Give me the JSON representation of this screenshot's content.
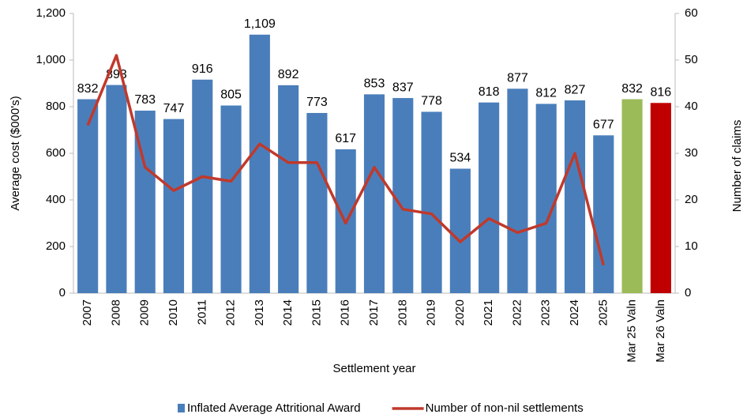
{
  "chart_data": {
    "type": "bar",
    "xlabel": "Settlement year",
    "ylabel": "Average cost ($000's)",
    "y2label": "Number of claims",
    "categories": [
      "2007",
      "2008",
      "2009",
      "2010",
      "2011",
      "2012",
      "2013",
      "2014",
      "2015",
      "2016",
      "2017",
      "2018",
      "2019",
      "2020",
      "2021",
      "2022",
      "2023",
      "2024",
      "2025",
      "Mar 25 Valn",
      "Mar 26 Valn"
    ],
    "series": [
      {
        "name": "Inflated Average Attritional Award",
        "type": "bar",
        "color": "#4a7ebb",
        "colors": [
          "#4a7ebb",
          "#4a7ebb",
          "#4a7ebb",
          "#4a7ebb",
          "#4a7ebb",
          "#4a7ebb",
          "#4a7ebb",
          "#4a7ebb",
          "#4a7ebb",
          "#4a7ebb",
          "#4a7ebb",
          "#4a7ebb",
          "#4a7ebb",
          "#4a7ebb",
          "#4a7ebb",
          "#4a7ebb",
          "#4a7ebb",
          "#4a7ebb",
          "#4a7ebb",
          "#9bbb59",
          "#c00000"
        ],
        "values": [
          832,
          893,
          783,
          747,
          916,
          805,
          1109,
          892,
          773,
          617,
          853,
          837,
          778,
          534,
          818,
          877,
          812,
          827,
          677,
          832,
          816
        ],
        "value_labels": [
          "832",
          "893",
          "783",
          "747",
          "916",
          "805",
          "1,109",
          "892",
          "773",
          "617",
          "853",
          "837",
          "778",
          "534",
          "818",
          "877",
          "812",
          "827",
          "677",
          "832",
          "816"
        ]
      },
      {
        "name": "Number of non-nil settlements",
        "type": "line",
        "axis": "y2",
        "color": "#c0392b",
        "values": [
          36,
          51,
          27,
          22,
          25,
          24,
          32,
          28,
          28,
          15,
          27,
          18,
          17,
          11,
          16,
          13,
          15,
          30,
          6,
          null,
          null
        ]
      }
    ],
    "ylim": [
      0,
      1200
    ],
    "yticks": [
      0,
      200,
      400,
      600,
      800,
      {
        "value": 1000,
        "label": "1,000"
      },
      {
        "value": 1200,
        "label": "1,200"
      }
    ],
    "y2lim": [
      0,
      60
    ],
    "y2ticks": [
      0,
      10,
      20,
      30,
      40,
      50,
      60
    ],
    "legend": "bottom"
  }
}
